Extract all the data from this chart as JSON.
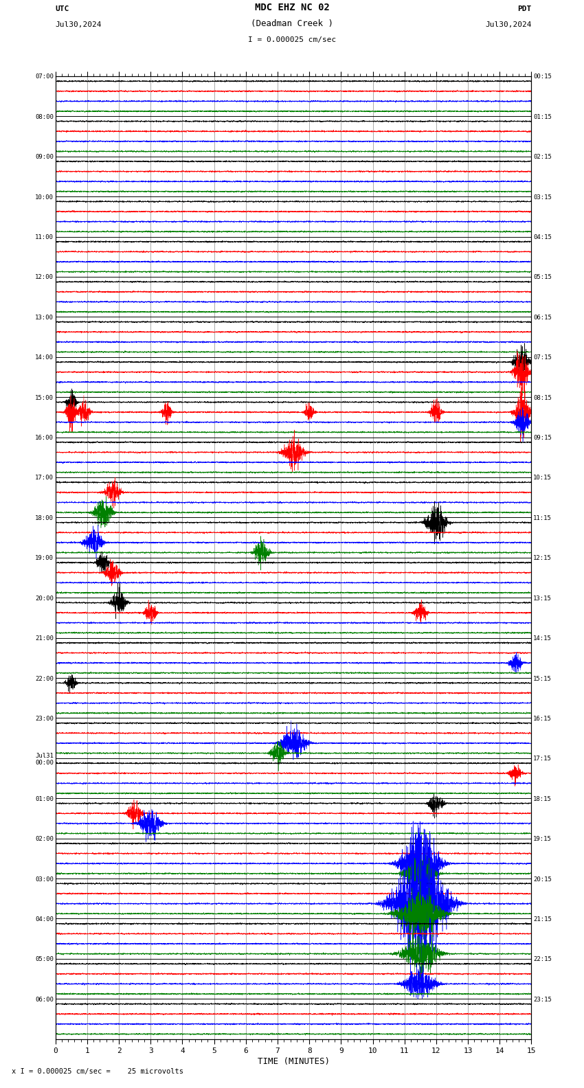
{
  "title_line1": "MDC EHZ NC 02",
  "title_line2": "(Deadman Creek )",
  "scale_label": "I = 0.000025 cm/sec",
  "utc_label": "UTC",
  "pdt_label": "PDT",
  "date_left": "Jul30,2024",
  "date_right": "Jul30,2024",
  "xlabel": "TIME (MINUTES)",
  "footer_label": "x I = 0.000025 cm/sec =    25 microvolts",
  "utc_times_left": [
    "07:00",
    "08:00",
    "09:00",
    "10:00",
    "11:00",
    "12:00",
    "13:00",
    "14:00",
    "15:00",
    "16:00",
    "17:00",
    "18:00",
    "19:00",
    "20:00",
    "21:00",
    "22:00",
    "23:00",
    "Jul31\n00:00",
    "01:00",
    "02:00",
    "03:00",
    "04:00",
    "05:00",
    "06:00"
  ],
  "pdt_times_right": [
    "00:15",
    "01:15",
    "02:15",
    "03:15",
    "04:15",
    "05:15",
    "06:15",
    "07:15",
    "08:15",
    "09:15",
    "10:15",
    "11:15",
    "12:15",
    "13:15",
    "14:15",
    "15:15",
    "16:15",
    "17:15",
    "18:15",
    "19:15",
    "20:15",
    "21:15",
    "22:15",
    "23:15"
  ],
  "num_rows": 24,
  "traces_per_row": 4,
  "time_minutes": 15,
  "colors": [
    "black",
    "red",
    "blue",
    "green"
  ],
  "bg_color": "white",
  "grid_color": "#888888",
  "figsize": [
    8.5,
    15.84
  ],
  "dpi": 100,
  "xlim": [
    0,
    15
  ],
  "xticks": [
    0,
    1,
    2,
    3,
    4,
    5,
    6,
    7,
    8,
    9,
    10,
    11,
    12,
    13,
    14,
    15
  ],
  "events": [
    [
      7,
      0,
      14.7,
      3.5,
      0.15
    ],
    [
      7,
      1,
      14.7,
      4.0,
      0.15
    ],
    [
      8,
      0,
      0.5,
      2.0,
      0.1
    ],
    [
      8,
      1,
      0.5,
      3.5,
      0.1
    ],
    [
      8,
      1,
      0.9,
      2.5,
      0.12
    ],
    [
      8,
      1,
      3.5,
      2.0,
      0.1
    ],
    [
      8,
      1,
      8.0,
      1.8,
      0.1
    ],
    [
      8,
      1,
      12.0,
      2.2,
      0.12
    ],
    [
      8,
      1,
      14.7,
      4.5,
      0.15
    ],
    [
      8,
      2,
      14.7,
      2.5,
      0.15
    ],
    [
      9,
      1,
      7.5,
      3.0,
      0.2
    ],
    [
      10,
      3,
      1.5,
      3.0,
      0.18
    ],
    [
      10,
      1,
      1.8,
      2.5,
      0.15
    ],
    [
      11,
      2,
      1.2,
      2.5,
      0.18
    ],
    [
      11,
      3,
      6.5,
      2.5,
      0.15
    ],
    [
      11,
      0,
      12.0,
      3.5,
      0.2
    ],
    [
      12,
      0,
      1.5,
      2.0,
      0.12
    ],
    [
      12,
      1,
      1.8,
      2.5,
      0.15
    ],
    [
      13,
      0,
      2.0,
      2.5,
      0.15
    ],
    [
      13,
      1,
      3.0,
      2.0,
      0.12
    ],
    [
      13,
      1,
      11.5,
      2.0,
      0.12
    ],
    [
      14,
      2,
      14.5,
      2.0,
      0.12
    ],
    [
      15,
      0,
      0.5,
      1.8,
      0.1
    ],
    [
      16,
      2,
      7.5,
      3.0,
      0.25
    ],
    [
      16,
      3,
      7.0,
      2.0,
      0.15
    ],
    [
      17,
      1,
      14.5,
      1.8,
      0.12
    ],
    [
      18,
      1,
      2.5,
      2.0,
      0.15
    ],
    [
      18,
      2,
      3.0,
      3.5,
      0.2
    ],
    [
      18,
      0,
      12.0,
      2.0,
      0.15
    ],
    [
      19,
      2,
      11.5,
      8.0,
      0.35
    ],
    [
      19,
      3,
      11.5,
      3.0,
      0.3
    ],
    [
      20,
      2,
      11.5,
      12.0,
      0.5
    ],
    [
      20,
      3,
      11.5,
      5.0,
      0.4
    ],
    [
      21,
      3,
      11.5,
      4.0,
      0.35
    ],
    [
      22,
      2,
      11.5,
      3.0,
      0.3
    ]
  ]
}
